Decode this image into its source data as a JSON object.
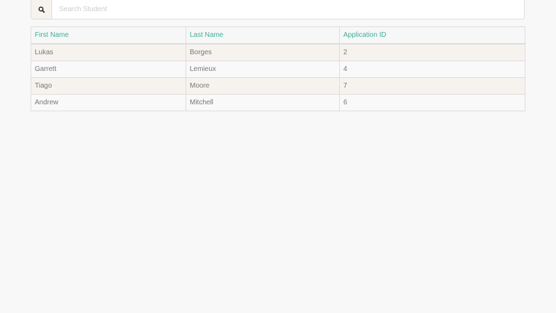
{
  "search": {
    "placeholder": "Search Student",
    "value": "",
    "icon": "search-icon"
  },
  "table": {
    "headers": [
      "First Name",
      "Last Name",
      "Application ID"
    ],
    "rows": [
      [
        "Lukas",
        "Borges",
        "2"
      ],
      [
        "Garrett",
        "Lemieux",
        "4"
      ],
      [
        "Tiago",
        "Moore",
        "7"
      ],
      [
        "Andrew",
        "Mitchell",
        "6"
      ]
    ]
  },
  "colors": {
    "header_text": "#3fae98",
    "row_alt": "#f6f3ef",
    "background": "#f8f8f8"
  }
}
